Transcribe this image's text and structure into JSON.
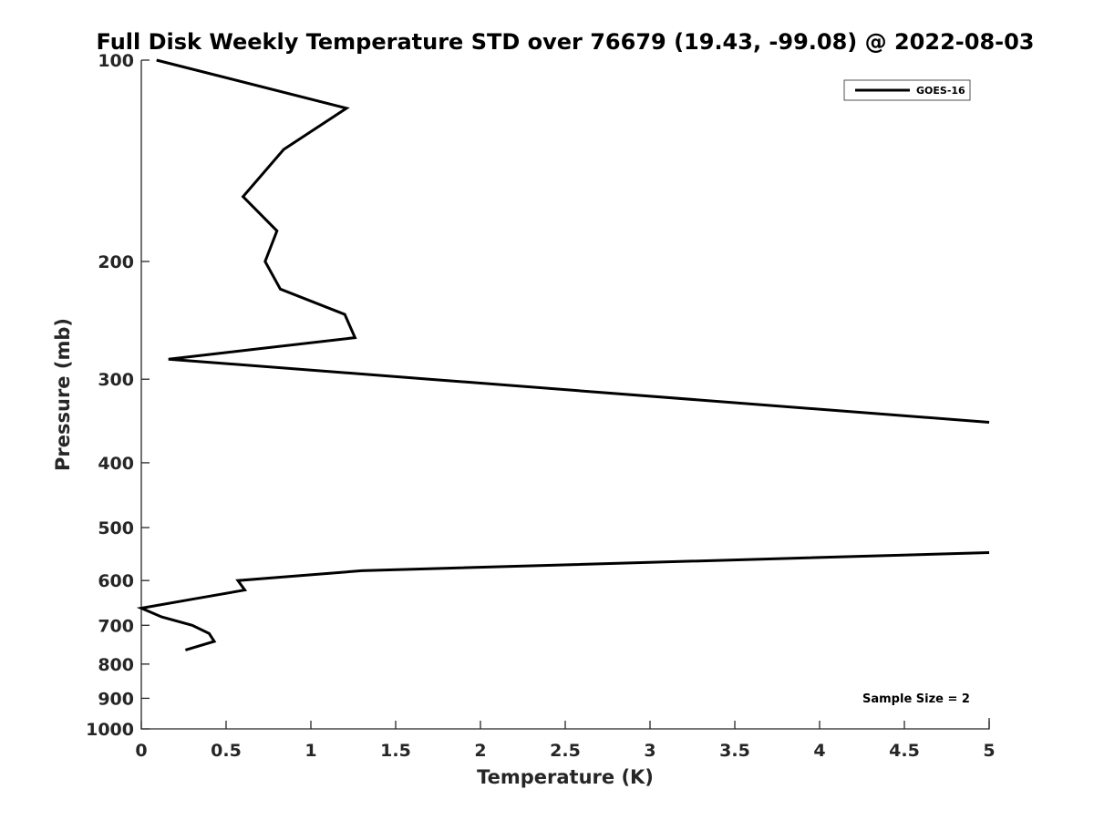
{
  "chart_data": {
    "type": "line",
    "title": "Full Disk Weekly Temperature STD over 76679 (19.43, -99.08) @ 2022-08-03",
    "xlabel": "Temperature (K)",
    "ylabel": "Pressure (mb)",
    "xlim": [
      0,
      5
    ],
    "ylim": [
      100,
      1000
    ],
    "y_scale": "log",
    "y_reversed": true,
    "grid": false,
    "legend_position": "top-right",
    "x_ticks": [
      0,
      0.5,
      1,
      1.5,
      2,
      2.5,
      3,
      3.5,
      4,
      4.5,
      5
    ],
    "x_tick_labels": [
      "0",
      "0.5",
      "1",
      "1.5",
      "2",
      "2.5",
      "3",
      "3.5",
      "4",
      "4.5",
      "5"
    ],
    "y_ticks": [
      100,
      200,
      300,
      400,
      500,
      600,
      700,
      800,
      900,
      1000
    ],
    "y_tick_labels": [
      "100",
      "200",
      "300",
      "400",
      "500",
      "600",
      "700",
      "800",
      "900",
      "1000"
    ],
    "series": [
      {
        "name": "GOES-16",
        "color": "#000000",
        "segments": [
          [
            {
              "x": 0.09,
              "y": 100
            },
            {
              "x": 1.21,
              "y": 118
            },
            {
              "x": 0.84,
              "y": 136
            },
            {
              "x": 0.6,
              "y": 160
            },
            {
              "x": 0.8,
              "y": 180
            },
            {
              "x": 0.73,
              "y": 200
            },
            {
              "x": 0.82,
              "y": 220
            },
            {
              "x": 1.2,
              "y": 240
            },
            {
              "x": 1.26,
              "y": 260
            },
            {
              "x": 0.16,
              "y": 280
            },
            {
              "x": 1.7,
              "y": 300
            },
            {
              "x": 5.0,
              "y": 348
            }
          ],
          [
            {
              "x": 5.0,
              "y": 545
            },
            {
              "x": 1.3,
              "y": 580
            },
            {
              "x": 0.57,
              "y": 600
            },
            {
              "x": 0.61,
              "y": 620
            },
            {
              "x": 0.3,
              "y": 640
            },
            {
              "x": 0.0,
              "y": 660
            },
            {
              "x": 0.12,
              "y": 680
            },
            {
              "x": 0.3,
              "y": 700
            },
            {
              "x": 0.4,
              "y": 720
            },
            {
              "x": 0.43,
              "y": 740
            },
            {
              "x": 0.26,
              "y": 762
            }
          ]
        ]
      }
    ],
    "annotations": [
      "Sample Size = 2"
    ]
  }
}
